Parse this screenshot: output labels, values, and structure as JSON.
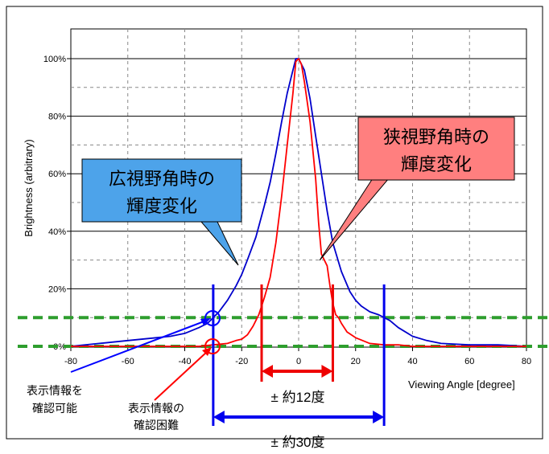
{
  "chart_data": {
    "type": "line",
    "xlabel": "Viewing Angle [degree]",
    "ylabel": "Brightness (arbitrary)",
    "xlim": [
      -80,
      80
    ],
    "ylim": [
      0,
      100
    ],
    "x_ticks": [
      -80,
      -60,
      -40,
      -20,
      0,
      20,
      40,
      60,
      80
    ],
    "y_ticks": [
      0,
      20,
      40,
      60,
      80,
      100
    ],
    "y_tick_labels": [
      "0%",
      "20%",
      "40%",
      "60%",
      "80%",
      "100%"
    ],
    "x_tick_labels": [
      "-80",
      "-60",
      "-40",
      "-20",
      "0",
      "20",
      "40",
      "60",
      "80"
    ],
    "grid": true,
    "series": [
      {
        "color": "#0000cc",
        "x": [
          -80,
          -70,
          -60,
          -50,
          -45,
          -40,
          -35,
          -32,
          -30,
          -28,
          -25,
          -22,
          -20,
          -18,
          -15,
          -12,
          -10,
          -8,
          -6,
          -4,
          -2,
          -1,
          0,
          2,
          4,
          6,
          8,
          10,
          12,
          15,
          18,
          20,
          22,
          25,
          28,
          30,
          32,
          35,
          40,
          45,
          50,
          60,
          70,
          80
        ],
        "values": [
          0,
          1,
          2,
          3,
          3.5,
          4.5,
          6.5,
          8,
          10,
          12,
          16,
          21,
          25,
          30,
          38,
          49,
          57,
          67,
          78,
          88,
          96,
          100,
          100,
          96,
          86,
          73,
          60,
          47,
          36,
          26,
          19,
          16,
          14,
          12,
          11,
          10,
          9,
          6.5,
          3.5,
          2,
          1,
          0.5,
          0.5,
          0
        ]
      },
      {
        "color": "#ff0000",
        "x": [
          -80,
          -60,
          -40,
          -35,
          -30,
          -25,
          -22,
          -20,
          -18,
          -16,
          -15,
          -14,
          -12,
          -10,
          -8,
          -6,
          -4,
          -2,
          -1,
          0,
          1,
          2,
          4,
          6,
          7,
          8,
          10,
          11,
          12,
          13,
          14,
          15,
          17,
          20,
          25,
          30,
          35,
          40,
          60,
          80
        ],
        "values": [
          0,
          0,
          0,
          0,
          0.5,
          1,
          2,
          2.5,
          4,
          7,
          9,
          11,
          17,
          24,
          36,
          52,
          70,
          88,
          99,
          100,
          98,
          92,
          78,
          58,
          43,
          32,
          28,
          21,
          15,
          11,
          10,
          8,
          5,
          3,
          1,
          0.5,
          0.5,
          0,
          0,
          0
        ]
      }
    ],
    "annotations": [
      {
        "text": [
          "広視野角時の",
          "輝度変化"
        ],
        "color": "#4da3ea"
      },
      {
        "text": [
          "狭視野角時の",
          "輝度変化"
        ],
        "color": "#ff7f7f"
      },
      {
        "text": "± 約12度",
        "range": [
          -13,
          12
        ]
      },
      {
        "text": "± 約30度",
        "range": [
          -30,
          30
        ]
      },
      {
        "text": [
          "表示情報を",
          "確認可能"
        ],
        "target": [
          -30,
          10
        ]
      },
      {
        "text": [
          "表示情報の",
          "確認困難"
        ],
        "target": [
          -30,
          0
        ]
      }
    ],
    "reference_lines": [
      0,
      10
    ]
  }
}
